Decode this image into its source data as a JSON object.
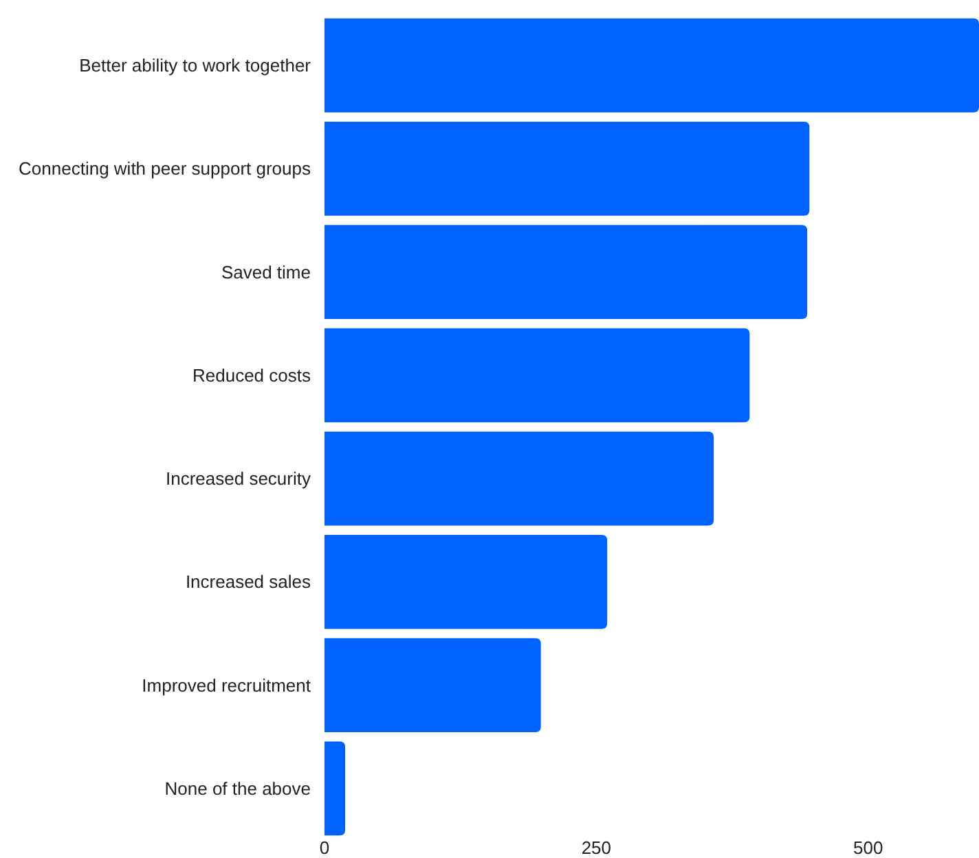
{
  "chart_data": {
    "type": "bar",
    "orientation": "horizontal",
    "categories": [
      "Better ability to work together",
      "Connecting with peer support groups",
      "Saved time",
      "Reduced costs",
      "Increased security",
      "Increased sales",
      "Improved recruitment",
      "None of the above"
    ],
    "values": [
      602,
      446,
      444,
      391,
      358,
      260,
      199,
      19
    ],
    "color": "#0062ff",
    "xlim": [
      0,
      602
    ],
    "xticks": [
      0,
      250,
      500
    ],
    "grid": false
  }
}
